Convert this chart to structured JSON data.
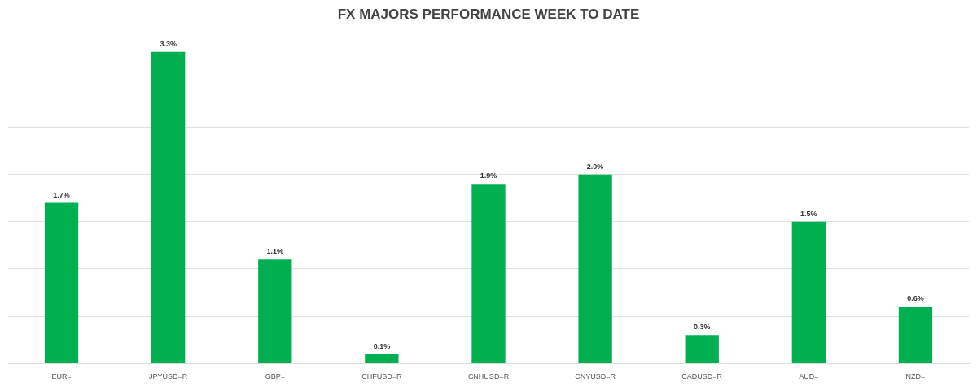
{
  "chart_data": {
    "type": "bar",
    "title": "FX MAJORS PERFORMANCE WEEK TO DATE",
    "categories": [
      "EUR=",
      "JPYUSD=R",
      "GBP=",
      "CHFUSD=R",
      "CNHUSD=R",
      "CNYUSD=R",
      "CADUSD=R",
      "AUD=",
      "NZD="
    ],
    "values": [
      1.7,
      3.3,
      1.1,
      0.1,
      1.9,
      2.0,
      0.3,
      1.5,
      0.6
    ],
    "value_labels": [
      "1.7%",
      "3.3%",
      "1.1%",
      "0.1%",
      "1.9%",
      "2.0%",
      "0.3%",
      "1.5%",
      "0.6%"
    ],
    "color": "#00b050",
    "ylim": [
      0,
      3.5
    ],
    "yticks": [
      {
        "value": 0,
        "label": null
      },
      {
        "value": 0.5,
        "label": null
      },
      {
        "value": 1,
        "label": null
      },
      {
        "value": 1.5,
        "label": null
      },
      {
        "value": 2,
        "label": null
      },
      {
        "value": 2.5,
        "label": null
      },
      {
        "value": 3,
        "label": null
      },
      {
        "value": 3.5,
        "label": null
      }
    ],
    "tick_labels": "x",
    "grid": "y"
  }
}
